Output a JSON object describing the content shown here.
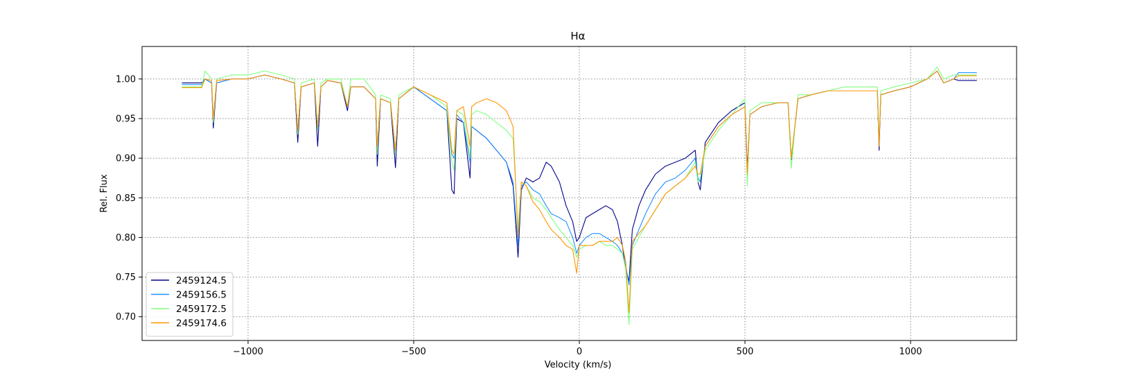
{
  "chart_data": {
    "type": "line",
    "title": "Hα",
    "xlabel": "Velocity (km/s)",
    "ylabel": "Rel. Flux",
    "xlim": [
      -1320,
      1320
    ],
    "ylim": [
      0.67,
      1.041
    ],
    "grid": true,
    "legend_position": "lower-left",
    "xticks": [
      -1000,
      -500,
      0,
      500,
      1000
    ],
    "xtick_labels": [
      "−1000",
      "−500",
      "0",
      "500",
      "1000"
    ],
    "yticks": [
      0.7,
      0.75,
      0.8,
      0.85,
      0.9,
      0.95,
      1.0
    ],
    "ytick_labels": [
      "0.70",
      "0.75",
      "0.80",
      "0.85",
      "0.90",
      "0.95",
      "1.00"
    ],
    "series": [
      {
        "name": "2459124.5",
        "color": "#00008b",
        "x": [
          -1200,
          -1140,
          -1130,
          -1110,
          -1105,
          -1095,
          -1050,
          -1000,
          -950,
          -900,
          -860,
          -850,
          -840,
          -800,
          -790,
          -780,
          -760,
          -720,
          -700,
          -690,
          -650,
          -615,
          -610,
          -600,
          -570,
          -555,
          -545,
          -500,
          -450,
          -400,
          -385,
          -378,
          -370,
          -350,
          -330,
          -325,
          -310,
          -280,
          -250,
          -220,
          -200,
          -185,
          -175,
          -160,
          -140,
          -120,
          -100,
          -85,
          -60,
          -40,
          -20,
          -8,
          0,
          20,
          40,
          60,
          80,
          100,
          115,
          130,
          140,
          150,
          160,
          180,
          200,
          230,
          260,
          290,
          320,
          350,
          358,
          365,
          380,
          420,
          460,
          500,
          507,
          515,
          550,
          600,
          630,
          640,
          660,
          700,
          750,
          800,
          850,
          900,
          905,
          910,
          950,
          1000,
          1050,
          1080,
          1100,
          1130,
          1145,
          1200
        ],
        "y": [
          0.995,
          0.995,
          1.0,
          0.995,
          0.938,
          0.995,
          1.0,
          1.0,
          1.005,
          1.0,
          0.995,
          0.92,
          0.99,
          0.995,
          0.915,
          0.99,
          0.998,
          0.995,
          0.96,
          0.99,
          0.99,
          0.975,
          0.89,
          0.975,
          0.97,
          0.888,
          0.975,
          0.99,
          0.975,
          0.96,
          0.86,
          0.855,
          0.95,
          0.945,
          0.875,
          0.94,
          0.935,
          0.925,
          0.91,
          0.895,
          0.865,
          0.775,
          0.86,
          0.875,
          0.87,
          0.875,
          0.895,
          0.89,
          0.87,
          0.84,
          0.82,
          0.795,
          0.8,
          0.825,
          0.83,
          0.835,
          0.84,
          0.835,
          0.82,
          0.79,
          0.76,
          0.745,
          0.81,
          0.84,
          0.86,
          0.88,
          0.89,
          0.895,
          0.9,
          0.91,
          0.87,
          0.86,
          0.92,
          0.945,
          0.96,
          0.97,
          0.885,
          0.955,
          0.965,
          0.97,
          0.97,
          0.898,
          0.975,
          0.98,
          0.985,
          0.985,
          0.985,
          0.985,
          0.91,
          0.98,
          0.985,
          0.99,
          1.0,
          1.01,
          0.995,
          1.0,
          0.998,
          0.998
        ]
      },
      {
        "name": "2459156.5",
        "color": "#1e90ff",
        "x": [
          -1200,
          -1140,
          -1130,
          -1110,
          -1105,
          -1095,
          -1050,
          -1000,
          -950,
          -900,
          -860,
          -850,
          -840,
          -800,
          -790,
          -780,
          -760,
          -720,
          -700,
          -690,
          -650,
          -615,
          -610,
          -600,
          -570,
          -555,
          -545,
          -500,
          -450,
          -400,
          -385,
          -378,
          -370,
          -350,
          -330,
          -325,
          -310,
          -280,
          -250,
          -220,
          -200,
          -185,
          -175,
          -160,
          -140,
          -120,
          -100,
          -85,
          -60,
          -40,
          -20,
          -8,
          0,
          20,
          40,
          60,
          80,
          100,
          115,
          130,
          140,
          150,
          160,
          180,
          200,
          230,
          260,
          290,
          320,
          350,
          358,
          365,
          380,
          420,
          460,
          500,
          507,
          515,
          550,
          600,
          630,
          640,
          660,
          700,
          750,
          800,
          850,
          900,
          905,
          910,
          950,
          1000,
          1050,
          1080,
          1100,
          1130,
          1145,
          1200
        ],
        "y": [
          0.993,
          0.993,
          1.0,
          0.995,
          0.948,
          0.995,
          1.0,
          1.0,
          1.005,
          1.0,
          0.995,
          0.935,
          0.99,
          0.995,
          0.935,
          0.99,
          0.998,
          0.995,
          0.965,
          0.99,
          0.99,
          0.975,
          0.915,
          0.975,
          0.97,
          0.91,
          0.975,
          0.99,
          0.975,
          0.96,
          0.905,
          0.9,
          0.955,
          0.945,
          0.895,
          0.94,
          0.935,
          0.925,
          0.91,
          0.895,
          0.87,
          0.79,
          0.865,
          0.87,
          0.86,
          0.855,
          0.84,
          0.83,
          0.825,
          0.82,
          0.8,
          0.78,
          0.79,
          0.8,
          0.805,
          0.805,
          0.8,
          0.795,
          0.79,
          0.78,
          0.765,
          0.74,
          0.79,
          0.81,
          0.83,
          0.855,
          0.87,
          0.875,
          0.885,
          0.9,
          0.875,
          0.87,
          0.915,
          0.94,
          0.955,
          0.965,
          0.875,
          0.955,
          0.965,
          0.97,
          0.97,
          0.9,
          0.975,
          0.98,
          0.985,
          0.985,
          0.985,
          0.985,
          0.915,
          0.98,
          0.985,
          0.99,
          1.0,
          1.01,
          0.995,
          1.0,
          1.008,
          1.008
        ]
      },
      {
        "name": "2459172.5",
        "color": "#7fff7f",
        "x": [
          -1200,
          -1140,
          -1130,
          -1110,
          -1105,
          -1095,
          -1050,
          -1000,
          -950,
          -900,
          -860,
          -850,
          -840,
          -800,
          -790,
          -780,
          -760,
          -720,
          -700,
          -690,
          -650,
          -615,
          -610,
          -600,
          -570,
          -555,
          -545,
          -500,
          -450,
          -400,
          -385,
          -378,
          -370,
          -350,
          -330,
          -325,
          -310,
          -280,
          -250,
          -220,
          -200,
          -185,
          -175,
          -160,
          -140,
          -120,
          -100,
          -85,
          -60,
          -40,
          -20,
          -8,
          0,
          20,
          40,
          60,
          80,
          100,
          115,
          130,
          140,
          150,
          160,
          180,
          200,
          230,
          260,
          290,
          320,
          350,
          358,
          365,
          380,
          420,
          460,
          500,
          507,
          515,
          550,
          600,
          630,
          640,
          660,
          700,
          750,
          800,
          850,
          900,
          905,
          910,
          950,
          1000,
          1050,
          1080,
          1100,
          1130,
          1145,
          1200
        ],
        "y": [
          0.99,
          0.99,
          1.01,
          1.0,
          0.945,
          1.0,
          1.005,
          1.005,
          1.01,
          1.005,
          1.0,
          0.93,
          0.995,
          1.0,
          0.935,
          0.995,
          1.0,
          1.0,
          0.965,
          1.0,
          1.0,
          0.98,
          0.905,
          0.98,
          0.975,
          0.905,
          0.98,
          0.99,
          0.98,
          0.965,
          0.895,
          0.885,
          0.96,
          0.955,
          0.9,
          0.955,
          0.96,
          0.955,
          0.945,
          0.935,
          0.925,
          0.81,
          0.87,
          0.865,
          0.85,
          0.845,
          0.835,
          0.825,
          0.81,
          0.8,
          0.79,
          0.775,
          0.785,
          0.79,
          0.79,
          0.795,
          0.79,
          0.79,
          0.785,
          0.78,
          0.76,
          0.69,
          0.785,
          0.8,
          0.815,
          0.835,
          0.855,
          0.865,
          0.875,
          0.895,
          0.87,
          0.875,
          0.91,
          0.935,
          0.955,
          0.975,
          0.865,
          0.96,
          0.97,
          0.97,
          0.97,
          0.887,
          0.98,
          0.98,
          0.985,
          0.99,
          0.99,
          0.99,
          0.92,
          0.985,
          0.99,
          0.995,
          1.0,
          1.015,
          1.0,
          1.005,
          1.005,
          1.005
        ]
      },
      {
        "name": "2459174.6",
        "color": "#ff9500",
        "x": [
          -1200,
          -1140,
          -1130,
          -1110,
          -1105,
          -1095,
          -1050,
          -1000,
          -950,
          -900,
          -860,
          -850,
          -840,
          -800,
          -790,
          -780,
          -760,
          -720,
          -700,
          -690,
          -650,
          -615,
          -610,
          -600,
          -570,
          -555,
          -545,
          -500,
          -450,
          -400,
          -385,
          -378,
          -370,
          -350,
          -330,
          -325,
          -310,
          -280,
          -250,
          -220,
          -200,
          -185,
          -175,
          -160,
          -140,
          -120,
          -100,
          -85,
          -60,
          -40,
          -20,
          -8,
          0,
          20,
          40,
          60,
          80,
          100,
          115,
          130,
          140,
          150,
          160,
          180,
          200,
          230,
          260,
          290,
          320,
          350,
          358,
          365,
          380,
          420,
          460,
          500,
          507,
          515,
          550,
          600,
          630,
          640,
          660,
          700,
          750,
          800,
          850,
          900,
          905,
          910,
          950,
          1000,
          1050,
          1080,
          1100,
          1130,
          1145,
          1200
        ],
        "y": [
          0.989,
          0.989,
          1.0,
          0.998,
          0.95,
          0.998,
          1.0,
          1.0,
          1.005,
          1.0,
          0.995,
          0.935,
          0.99,
          0.995,
          0.94,
          0.99,
          0.998,
          0.995,
          0.965,
          0.99,
          0.99,
          0.975,
          0.915,
          0.975,
          0.97,
          0.91,
          0.975,
          0.99,
          0.98,
          0.97,
          0.91,
          0.905,
          0.96,
          0.965,
          0.915,
          0.965,
          0.97,
          0.975,
          0.97,
          0.96,
          0.94,
          0.8,
          0.87,
          0.865,
          0.845,
          0.835,
          0.82,
          0.81,
          0.8,
          0.79,
          0.785,
          0.755,
          0.79,
          0.79,
          0.79,
          0.795,
          0.795,
          0.795,
          0.8,
          0.79,
          0.77,
          0.705,
          0.795,
          0.805,
          0.815,
          0.835,
          0.855,
          0.865,
          0.875,
          0.89,
          0.88,
          0.88,
          0.915,
          0.94,
          0.955,
          0.965,
          0.88,
          0.955,
          0.965,
          0.97,
          0.97,
          0.9,
          0.975,
          0.98,
          0.985,
          0.985,
          0.985,
          0.985,
          0.915,
          0.98,
          0.985,
          0.99,
          1.0,
          1.01,
          0.995,
          1.0,
          1.004,
          1.004
        ]
      }
    ]
  }
}
